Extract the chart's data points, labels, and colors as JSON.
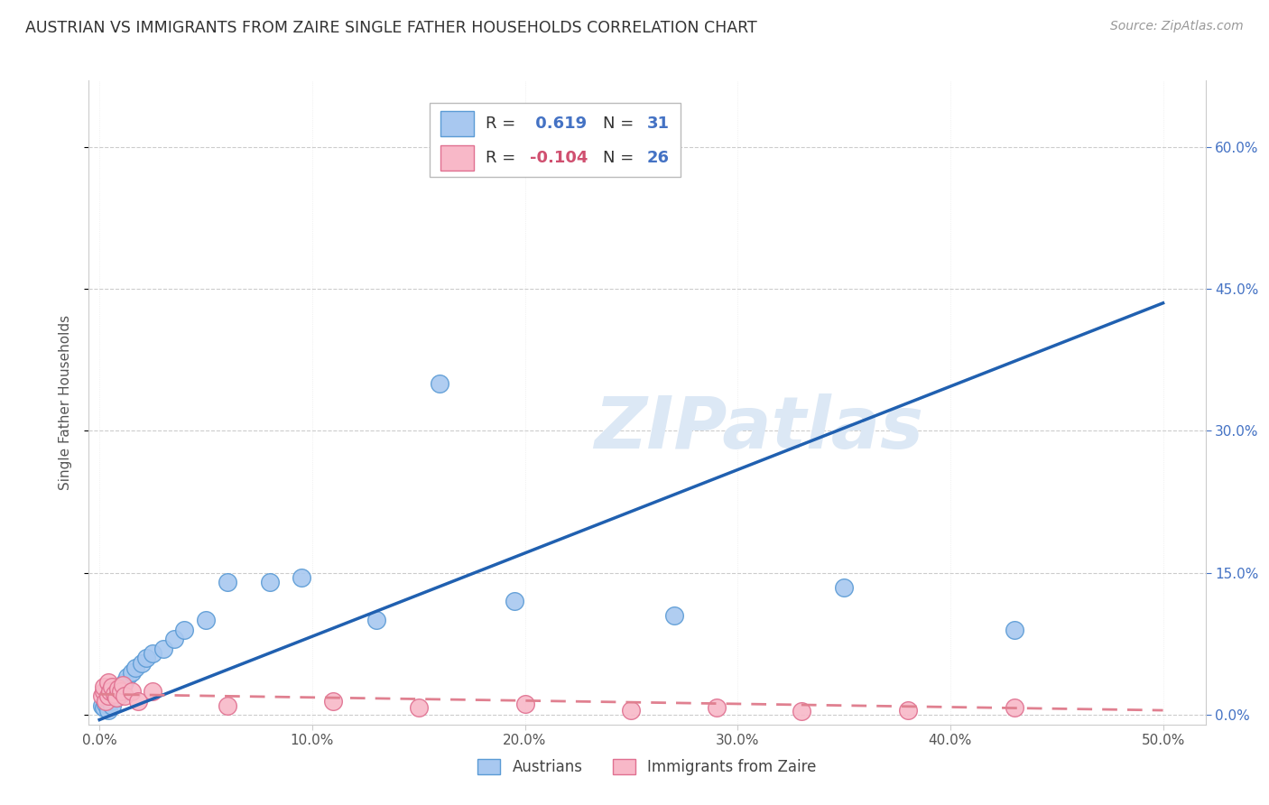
{
  "title": "AUSTRIAN VS IMMIGRANTS FROM ZAIRE SINGLE FATHER HOUSEHOLDS CORRELATION CHART",
  "source": "Source: ZipAtlas.com",
  "ylabel": "Single Father Households",
  "xlabel_ticks": [
    "0.0%",
    "10.0%",
    "20.0%",
    "30.0%",
    "40.0%",
    "50.0%"
  ],
  "xlabel_vals": [
    0.0,
    0.1,
    0.2,
    0.3,
    0.4,
    0.5
  ],
  "ylabel_ticks": [
    "0.0%",
    "15.0%",
    "30.0%",
    "45.0%",
    "60.0%"
  ],
  "ylabel_vals": [
    0.0,
    0.15,
    0.3,
    0.45,
    0.6
  ],
  "xlim": [
    -0.005,
    0.52
  ],
  "ylim": [
    -0.01,
    0.67
  ],
  "austrians_x": [
    0.001,
    0.002,
    0.003,
    0.004,
    0.005,
    0.006,
    0.007,
    0.008,
    0.009,
    0.01,
    0.011,
    0.012,
    0.013,
    0.015,
    0.017,
    0.02,
    0.022,
    0.025,
    0.03,
    0.035,
    0.04,
    0.05,
    0.06,
    0.08,
    0.095,
    0.13,
    0.16,
    0.195,
    0.27,
    0.35,
    0.43
  ],
  "austrians_y": [
    0.01,
    0.008,
    0.012,
    0.005,
    0.015,
    0.01,
    0.02,
    0.018,
    0.025,
    0.022,
    0.03,
    0.035,
    0.04,
    0.045,
    0.05,
    0.055,
    0.06,
    0.065,
    0.07,
    0.08,
    0.09,
    0.1,
    0.14,
    0.14,
    0.145,
    0.1,
    0.35,
    0.12,
    0.105,
    0.135,
    0.09
  ],
  "zaire_x": [
    0.001,
    0.002,
    0.002,
    0.003,
    0.004,
    0.004,
    0.005,
    0.006,
    0.007,
    0.008,
    0.009,
    0.01,
    0.011,
    0.012,
    0.015,
    0.018,
    0.025,
    0.06,
    0.11,
    0.15,
    0.2,
    0.25,
    0.29,
    0.33,
    0.38,
    0.43
  ],
  "zaire_y": [
    0.02,
    0.025,
    0.03,
    0.015,
    0.035,
    0.02,
    0.025,
    0.03,
    0.022,
    0.018,
    0.028,
    0.025,
    0.032,
    0.02,
    0.025,
    0.015,
    0.025,
    0.01,
    0.015,
    0.008,
    0.012,
    0.005,
    0.008,
    0.004,
    0.005,
    0.008
  ],
  "line_austrians_x0": 0.0,
  "line_austrians_y0": -0.005,
  "line_austrians_x1": 0.5,
  "line_austrians_y1": 0.435,
  "line_zaire_x0": 0.0,
  "line_zaire_y0": 0.022,
  "line_zaire_x1": 0.5,
  "line_zaire_y1": 0.005,
  "R_austrians": 0.619,
  "N_austrians": 31,
  "R_zaire": -0.104,
  "N_zaire": 26,
  "color_austrians_face": "#A8C8F0",
  "color_austrians_edge": "#5B9BD5",
  "color_zaire_face": "#F8B8C8",
  "color_zaire_edge": "#E07090",
  "color_line_austrians": "#2060B0",
  "color_line_zaire": "#E08090",
  "color_title": "#333333",
  "color_axis_right": "#4472C4",
  "color_axis_bottom": "#555555",
  "watermark_color": "#DCE8F5",
  "background_color": "#FFFFFF",
  "grid_color": "#CCCCCC",
  "legend_box_edge": "#BBBBBB",
  "legend_text_dark": "#333333",
  "legend_R_color": "#4472C4",
  "legend_N_color": "#4472C4"
}
